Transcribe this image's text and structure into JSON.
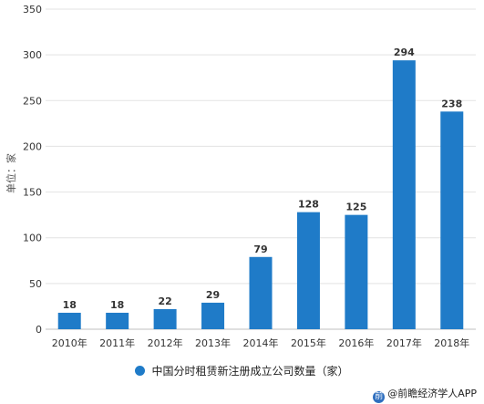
{
  "chart_data": {
    "type": "bar",
    "categories": [
      "2010年",
      "2011年",
      "2012年",
      "2013年",
      "2014年",
      "2015年",
      "2016年",
      "2017年",
      "2018年"
    ],
    "values": [
      18,
      18,
      22,
      29,
      79,
      128,
      125,
      294,
      238
    ],
    "ylabel": "单位：家",
    "ylim": [
      0,
      350
    ],
    "yticks": [
      0,
      50,
      100,
      150,
      200,
      250,
      300,
      350
    ],
    "grid": true,
    "legend_position": "bottom",
    "series": [
      {
        "name": "中国分时租赁新注册成立公司数量（家）",
        "values": [
          18,
          18,
          22,
          29,
          79,
          128,
          125,
          294,
          238
        ]
      }
    ],
    "bar_color": "#1f7bc8"
  },
  "source": {
    "text": "@前瞻经济学人APP",
    "icon": "source-logo-icon"
  }
}
